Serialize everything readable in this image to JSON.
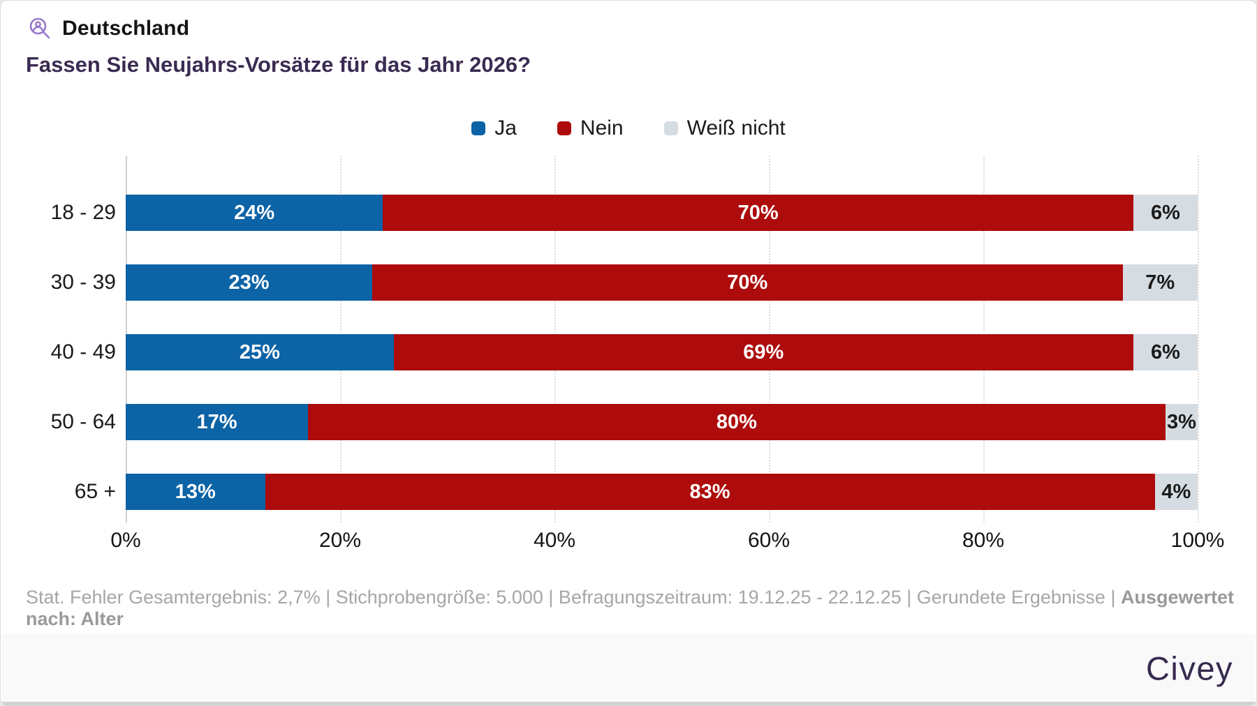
{
  "header": {
    "region": "Deutschland",
    "question": "Fassen Sie Neujahrs-Vorsätze für das Jahr 2026?"
  },
  "legend": [
    {
      "label": "Ja",
      "color": "#0c63a6"
    },
    {
      "label": "Nein",
      "color": "#ad0b0c"
    },
    {
      "label": "Weiß nicht",
      "color": "#d5dce2"
    }
  ],
  "chart_data": {
    "type": "bar",
    "orientation": "horizontal-stacked",
    "title": "Fassen Sie Neujahrs-Vorsätze für das Jahr 2026?",
    "categories": [
      "18 - 29",
      "30 - 39",
      "40 - 49",
      "50 - 64",
      "65 +"
    ],
    "series": [
      {
        "name": "Ja",
        "color": "#0c63a6",
        "label_color": "#ffffff",
        "values": [
          24,
          23,
          25,
          17,
          13
        ],
        "labels": [
          "24%",
          "23%",
          "25%",
          "17%",
          "13%"
        ]
      },
      {
        "name": "Nein",
        "color": "#ad0b0c",
        "label_color": "#ffffff",
        "values": [
          70,
          70,
          69,
          80,
          83
        ],
        "labels": [
          "70%",
          "70%",
          "69%",
          "80%",
          "83%"
        ]
      },
      {
        "name": "Weiß nicht",
        "color": "#d5dce2",
        "label_color": "#1a1a1a",
        "values": [
          6,
          7,
          6,
          3,
          4
        ],
        "labels": [
          "6%",
          "7%",
          "6%",
          "3%",
          "4%"
        ]
      }
    ],
    "xlim": [
      0,
      100
    ],
    "x_ticks": [
      "0%",
      "20%",
      "40%",
      "60%",
      "80%",
      "100%"
    ],
    "grid": "dotted-vertical",
    "legend_position": "top-center"
  },
  "footer": {
    "text": "Stat. Fehler Gesamtergebnis: 2,7% | Stichprobengröße: 5.000 | Befragungszeitraum: 19.12.25 - 22.12.25 | Gerundete Ergebnisse | ",
    "emphasis": "Ausgewertet nach: Alter"
  },
  "brand": {
    "logo_text": "Civey"
  }
}
